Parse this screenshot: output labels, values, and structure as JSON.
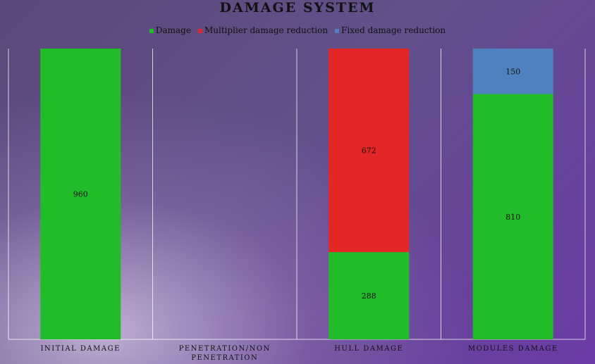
{
  "chart_data": {
    "type": "bar",
    "stacked": true,
    "title": "DAMAGE SYSTEM",
    "categories": [
      "INITIAL DAMAGE",
      "PENETRATION/NON PENETRATION",
      "HULL DAMAGE",
      "MODULES DAMAGE"
    ],
    "series": [
      {
        "name": "Damage",
        "color": "#22bb2a",
        "values": [
          960,
          null,
          288,
          810
        ]
      },
      {
        "name": "Multiplier damage reduction",
        "color": "#e32626",
        "values": [
          null,
          null,
          672,
          null
        ]
      },
      {
        "name": "Fixed damage reduction",
        "color": "#4e81bd",
        "values": [
          null,
          null,
          null,
          150
        ]
      }
    ],
    "data_labels": [
      [
        "960",
        "",
        "288",
        "810"
      ],
      [
        "",
        "",
        "672",
        ""
      ],
      [
        "",
        "",
        "",
        "150"
      ]
    ],
    "ylim": [
      0,
      960
    ],
    "legend_position": "top",
    "grid": "vertical separators",
    "xlabel": "",
    "ylabel": ""
  }
}
